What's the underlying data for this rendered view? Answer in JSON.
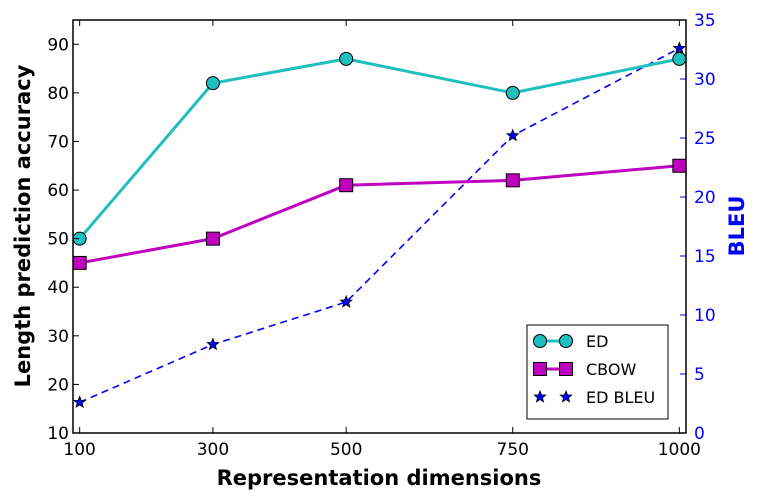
{
  "chart_data": {
    "type": "line",
    "title": "",
    "xlabel": "Representation dimensions",
    "ylabel": "Length prediction accuracy",
    "y2label": "BLEU",
    "categories": [
      "100",
      "300",
      "500",
      "750",
      "1000"
    ],
    "x": [
      100,
      300,
      500,
      750,
      1000
    ],
    "xlim": [
      90,
      1010
    ],
    "ylim": [
      10,
      95
    ],
    "y2lim": [
      0,
      35
    ],
    "xticks": [
      "100",
      "300",
      "500",
      "750",
      "1000"
    ],
    "yticks": [
      "10",
      "20",
      "30",
      "40",
      "50",
      "60",
      "70",
      "80",
      "90"
    ],
    "y2ticks": [
      "0",
      "5",
      "10",
      "15",
      "20",
      "25",
      "30",
      "35"
    ],
    "grid": false,
    "legend_position": "bottom-right",
    "series": [
      {
        "name": "ED",
        "axis": "left",
        "marker": "circle",
        "line": "solid",
        "color": "#1fbfbf",
        "values": [
          50,
          82,
          87,
          80,
          87
        ]
      },
      {
        "name": "CBOW",
        "axis": "left",
        "marker": "square",
        "line": "solid",
        "color": "#bf00bf",
        "values": [
          45,
          50,
          61,
          62,
          65
        ]
      },
      {
        "name": "ED BLEU",
        "axis": "right",
        "marker": "star",
        "line": "dashed",
        "color": "#0000ff",
        "values": [
          2.6,
          7.5,
          11.1,
          25.2,
          32.6
        ]
      }
    ]
  }
}
